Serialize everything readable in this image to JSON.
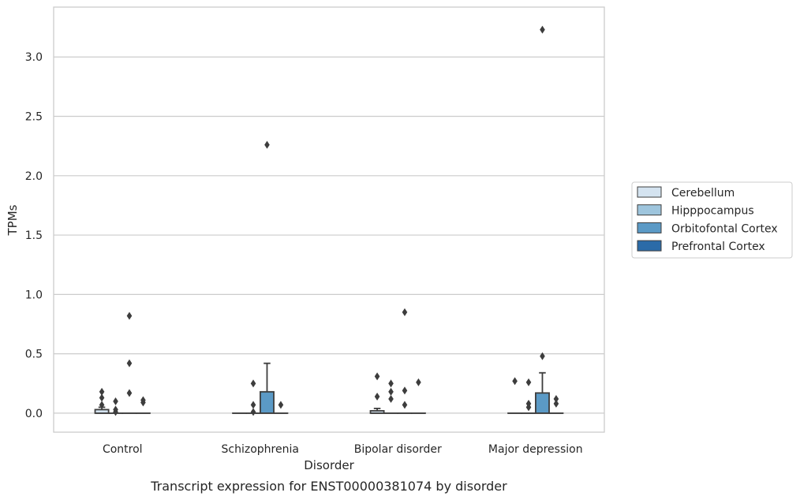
{
  "caption": "Transcript expression for ENST00000381074 by disorder",
  "chart_data": {
    "type": "box",
    "title": "",
    "xlabel": "Disorder",
    "ylabel": "TPMs",
    "ylim": [
      -0.16,
      3.42
    ],
    "yticks": [
      0.0,
      0.5,
      1.0,
      1.5,
      2.0,
      2.5,
      3.0
    ],
    "ytick_labels": [
      "0.0",
      "0.5",
      "1.0",
      "1.5",
      "2.0",
      "2.5",
      "3.0"
    ],
    "grid": "horizontal",
    "legend_position": "right",
    "categories": [
      "Control",
      "Schizophrenia",
      "Bipolar disorder",
      "Major depression"
    ],
    "series": [
      {
        "name": "Cerebellum",
        "color": "#d4e3f0",
        "boxes": [
          {
            "q1": 0.0,
            "median": 0.0,
            "q3": 0.03,
            "whisker_low": 0.0,
            "whisker_high": 0.05,
            "outliers": [
              0.07,
              0.13,
              0.18
            ]
          },
          {
            "q1": 0.0,
            "median": 0.0,
            "q3": 0.0,
            "whisker_low": 0.0,
            "whisker_high": 0.0,
            "outliers": []
          },
          {
            "q1": 0.0,
            "median": 0.0,
            "q3": 0.02,
            "whisker_low": 0.0,
            "whisker_high": 0.04,
            "outliers": [
              0.14,
              0.31
            ]
          },
          {
            "q1": 0.0,
            "median": 0.0,
            "q3": 0.0,
            "whisker_low": 0.0,
            "whisker_high": 0.0,
            "outliers": [
              0.27
            ]
          }
        ]
      },
      {
        "name": "Hipppocampus",
        "color": "#9ec5dd",
        "boxes": [
          {
            "q1": 0.0,
            "median": 0.0,
            "q3": 0.0,
            "whisker_low": 0.0,
            "whisker_high": 0.0,
            "outliers": [
              0.01,
              0.03,
              0.1
            ]
          },
          {
            "q1": 0.0,
            "median": 0.0,
            "q3": 0.0,
            "whisker_low": 0.0,
            "whisker_high": 0.0,
            "outliers": [
              0.01,
              0.07,
              0.25
            ]
          },
          {
            "q1": 0.0,
            "median": 0.0,
            "q3": 0.0,
            "whisker_low": 0.0,
            "whisker_high": 0.0,
            "outliers": [
              0.12,
              0.18,
              0.25
            ]
          },
          {
            "q1": 0.0,
            "median": 0.0,
            "q3": 0.0,
            "whisker_low": 0.0,
            "whisker_high": 0.0,
            "outliers": [
              0.05,
              0.08,
              0.26
            ]
          }
        ]
      },
      {
        "name": "Orbitofontal Cortex",
        "color": "#5b9ac6",
        "boxes": [
          {
            "q1": 0.0,
            "median": 0.0,
            "q3": 0.0,
            "whisker_low": 0.0,
            "whisker_high": 0.0,
            "outliers": [
              0.17,
              0.42,
              0.82
            ]
          },
          {
            "q1": 0.0,
            "median": 0.0,
            "q3": 0.18,
            "whisker_low": 0.0,
            "whisker_high": 0.42,
            "outliers": [
              2.26
            ]
          },
          {
            "q1": 0.0,
            "median": 0.0,
            "q3": 0.0,
            "whisker_low": 0.0,
            "whisker_high": 0.0,
            "outliers": [
              0.07,
              0.19,
              0.85
            ]
          },
          {
            "q1": 0.0,
            "median": 0.0,
            "q3": 0.17,
            "whisker_low": 0.0,
            "whisker_high": 0.34,
            "outliers": [
              0.48,
              3.23
            ]
          }
        ]
      },
      {
        "name": "Prefrontal Cortex",
        "color": "#2b6ba8",
        "boxes": [
          {
            "q1": 0.0,
            "median": 0.0,
            "q3": 0.0,
            "whisker_low": 0.0,
            "whisker_high": 0.0,
            "outliers": [
              0.09,
              0.11
            ]
          },
          {
            "q1": 0.0,
            "median": 0.0,
            "q3": 0.0,
            "whisker_low": 0.0,
            "whisker_high": 0.0,
            "outliers": [
              0.07
            ]
          },
          {
            "q1": 0.0,
            "median": 0.0,
            "q3": 0.0,
            "whisker_low": 0.0,
            "whisker_high": 0.0,
            "outliers": [
              0.26
            ]
          },
          {
            "q1": 0.0,
            "median": 0.0,
            "q3": 0.0,
            "whisker_low": 0.0,
            "whisker_high": 0.0,
            "outliers": [
              0.08,
              0.12
            ]
          }
        ]
      }
    ]
  }
}
